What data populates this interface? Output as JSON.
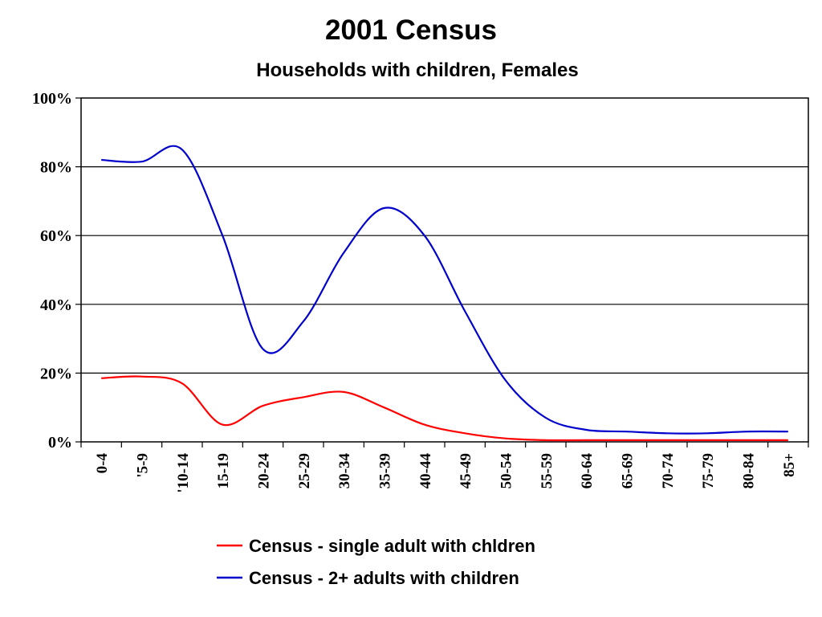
{
  "chart_data": {
    "type": "line",
    "title": "2001 Census",
    "subtitle": "Households with children, Females",
    "xlabel": "",
    "ylabel": "",
    "ylim": [
      0,
      100
    ],
    "y_ticks": [
      "0%",
      "20%",
      "40%",
      "60%",
      "80%",
      "100%"
    ],
    "y_tick_values": [
      0,
      20,
      40,
      60,
      80,
      100
    ],
    "categories": [
      "0-4",
      "'5-9",
      "'10-14",
      "15-19",
      "20-24",
      "25-29",
      "30-34",
      "35-39",
      "40-44",
      "45-49",
      "50-54",
      "55-59",
      "60-64",
      "65-69",
      "70-74",
      "75-79",
      "80-84",
      "85+"
    ],
    "grid": "horizontal",
    "legend_position": "bottom",
    "series": [
      {
        "name": "Census - single adult with chldren",
        "color": "#ff0000",
        "values": [
          18.5,
          19,
          17,
          5,
          10.5,
          13,
          14.5,
          10,
          5,
          2.5,
          1,
          0.5,
          0.5,
          0.5,
          0.5,
          0.5,
          0.5,
          0.5
        ]
      },
      {
        "name": "Census - 2+ adults with children",
        "color": "#0000cc",
        "values": [
          82,
          81.5,
          85,
          60,
          27,
          35,
          55,
          68,
          60,
          38,
          18,
          7,
          3.5,
          3,
          2.5,
          2.5,
          3,
          3
        ]
      }
    ]
  }
}
